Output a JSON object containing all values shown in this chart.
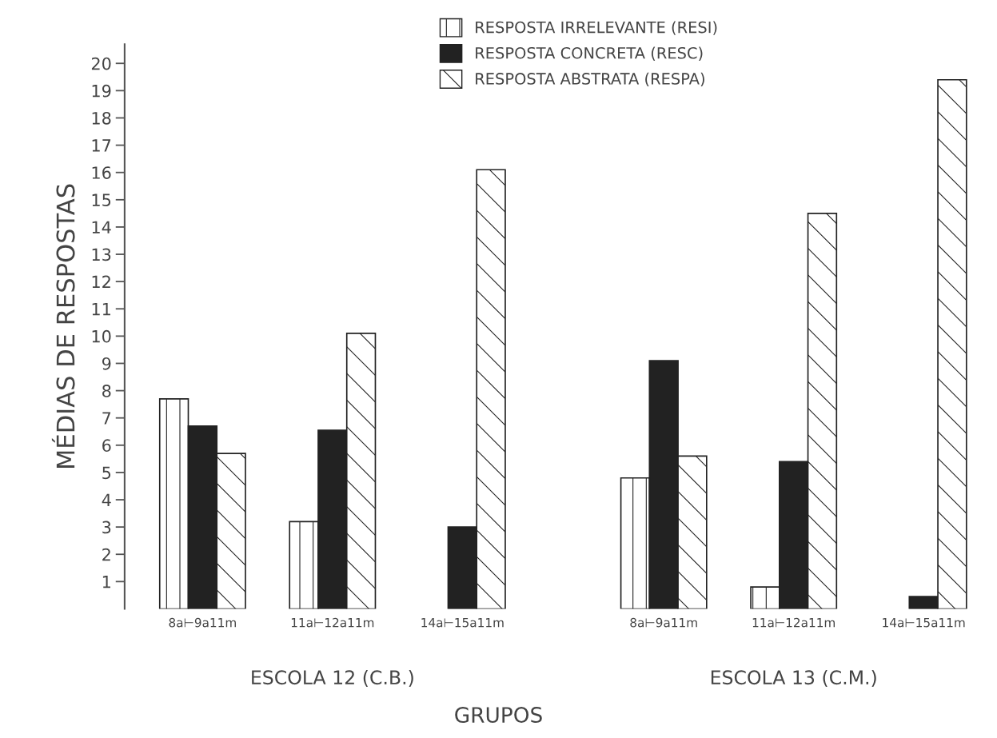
{
  "chart_data": {
    "type": "bar",
    "xlabel": "GRUPOS",
    "ylabel": "MÉDIAS DE RESPOSTAS",
    "categories": [
      "8a⊢9a11m",
      "11a⊢12a11m",
      "14a⊢15a11m",
      "8a⊢9a11m",
      "11a⊢12a11m",
      "14a⊢15a11m"
    ],
    "series": [
      {
        "name": "RESPOSTA IRRELEVANTE (RESI)",
        "color": "#ffffff",
        "values": [
          7.7,
          3.2,
          0,
          4.8,
          0.8,
          0
        ]
      },
      {
        "name": "RESPOSTA CONCRETA (RESC)",
        "color": "#222222",
        "values": [
          6.7,
          6.55,
          3.0,
          9.1,
          5.4,
          0.45
        ]
      },
      {
        "name": "RESPOSTA ABSTRATA (RESPA)",
        "color": "#ffffff",
        "values": [
          5.7,
          10.1,
          16.1,
          5.6,
          14.5,
          19.4
        ]
      }
    ],
    "annotations": [
      "ESCOLA 12 (C.B.)",
      "ESCOLA 13 (C.M.)"
    ],
    "ylim": [
      0,
      20.7
    ],
    "yticks": [
      1,
      2,
      3,
      4,
      5,
      6,
      7,
      8,
      9,
      10,
      11,
      12,
      13,
      14,
      15,
      16,
      17,
      18,
      19,
      20
    ],
    "grid": false,
    "legend": "top"
  }
}
